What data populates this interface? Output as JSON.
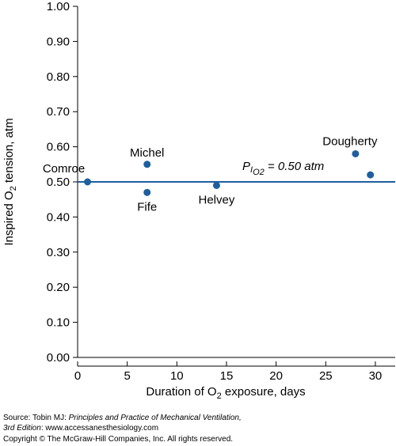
{
  "chart_data": {
    "type": "scatter",
    "xlabel": "Duration of O2 exposure, days",
    "ylabel": "Inspired O2 tension, atm",
    "xlim": [
      0,
      32
    ],
    "ylim": [
      0,
      1.0
    ],
    "x_ticks": [
      0,
      5,
      10,
      15,
      20,
      25,
      30
    ],
    "x_tick_labels": [
      "0",
      "5",
      "10",
      "15",
      "20",
      "25",
      "30"
    ],
    "y_ticks": [
      0,
      0.1,
      0.2,
      0.3,
      0.4,
      0.5,
      0.6,
      0.7,
      0.8,
      0.9,
      1.0
    ],
    "y_tick_labels": [
      "0.00",
      "0.10",
      "0.20",
      "0.30",
      "0.40",
      "0.50",
      "0.60",
      "0.70",
      "0.80",
      "0.90",
      "1.00"
    ],
    "grid": false,
    "marker_color": "#1f5f9f",
    "points": [
      {
        "x": 1,
        "y": 0.5,
        "label": "Comroe"
      },
      {
        "x": 7,
        "y": 0.55,
        "label": "Michel"
      },
      {
        "x": 7,
        "y": 0.47,
        "label": "Fife"
      },
      {
        "x": 14,
        "y": 0.49,
        "label": "Helvey"
      },
      {
        "x": 28,
        "y": 0.58,
        "label": "Dougherty"
      },
      {
        "x": 29.5,
        "y": 0.52,
        "label": ""
      }
    ],
    "reference_line": {
      "y": 0.5,
      "label_prefix": "P",
      "label_sub1": "I",
      "label_sub2": "O2",
      "label_suffix": " = 0.50 atm"
    }
  },
  "source": {
    "prefix": "Source: Tobin MJ: ",
    "book_title": "Principles and Practice of Mechanical Ventilation,",
    "edition": "3rd Edition",
    "url_text": ": www.accessanesthesiology.com",
    "copyright": "Copyright © The McGraw-Hill Companies, Inc. All rights reserved."
  }
}
